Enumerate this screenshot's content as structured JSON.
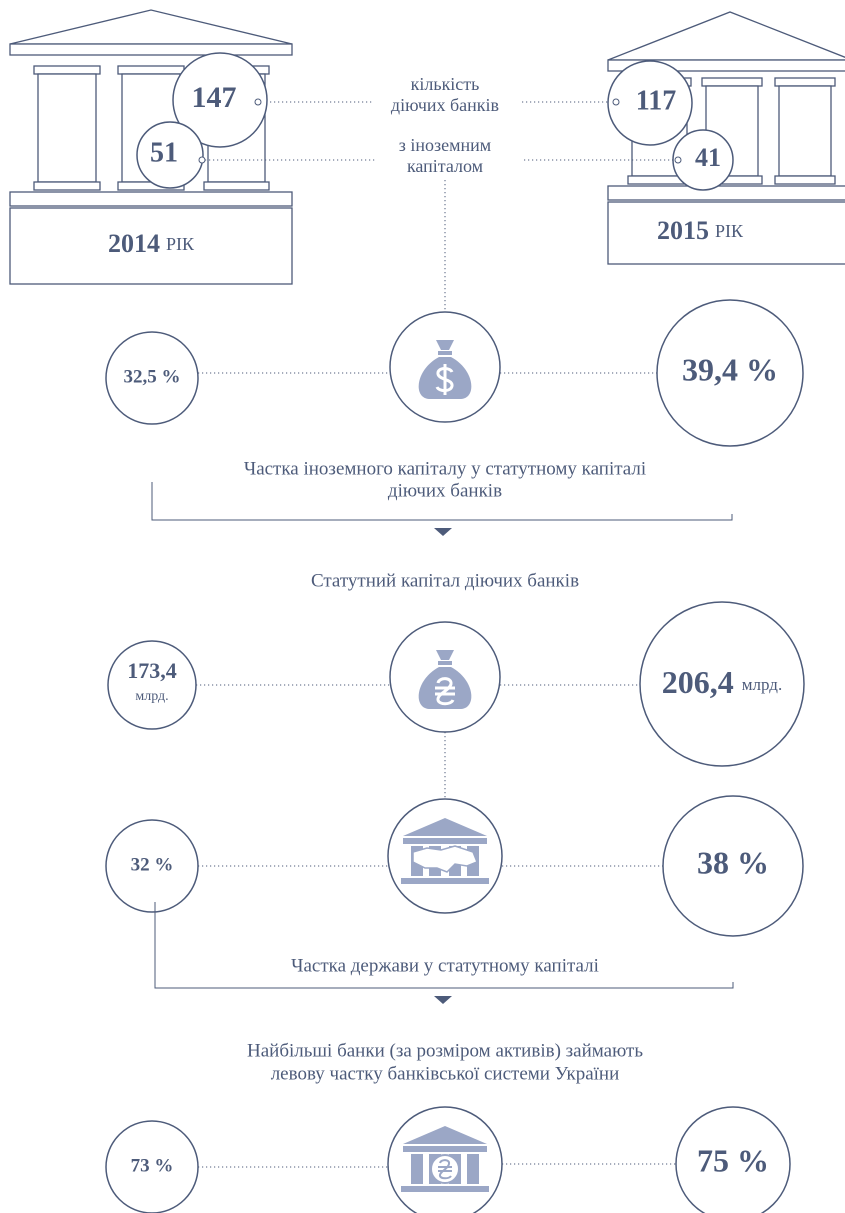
{
  "year_2014": {
    "year": "2014",
    "suffix": "РІК",
    "banks": "147",
    "foreign": "51"
  },
  "year_2015": {
    "year": "2015",
    "suffix": "РІК",
    "banks": "117",
    "foreign": "41"
  },
  "labels": {
    "banks_count": [
      "кількість",
      "діючих банків"
    ],
    "foreign_capital": [
      "з іноземним",
      "капіталом"
    ]
  },
  "sections": [
    {
      "left": "32,5 %",
      "right": "39,4 %",
      "caption_below": [
        "Частка іноземного капіталу у статутному капіталі",
        "діючих банків"
      ]
    },
    {
      "caption_above": [
        "Статутний капітал діючих банків"
      ],
      "left": {
        "value": "173,4",
        "unit": "млрд."
      },
      "right": {
        "value": "206,4",
        "unit": "млрд."
      }
    },
    {
      "left": "32 %",
      "right": "38 %",
      "caption_below": [
        "Частка держави у статутному капіталі"
      ]
    },
    {
      "caption_above": [
        "Найбільші банки (за розміром активів) займають",
        "левову частку банківської системи України"
      ],
      "left": "73 %",
      "right": "75 %"
    }
  ]
}
